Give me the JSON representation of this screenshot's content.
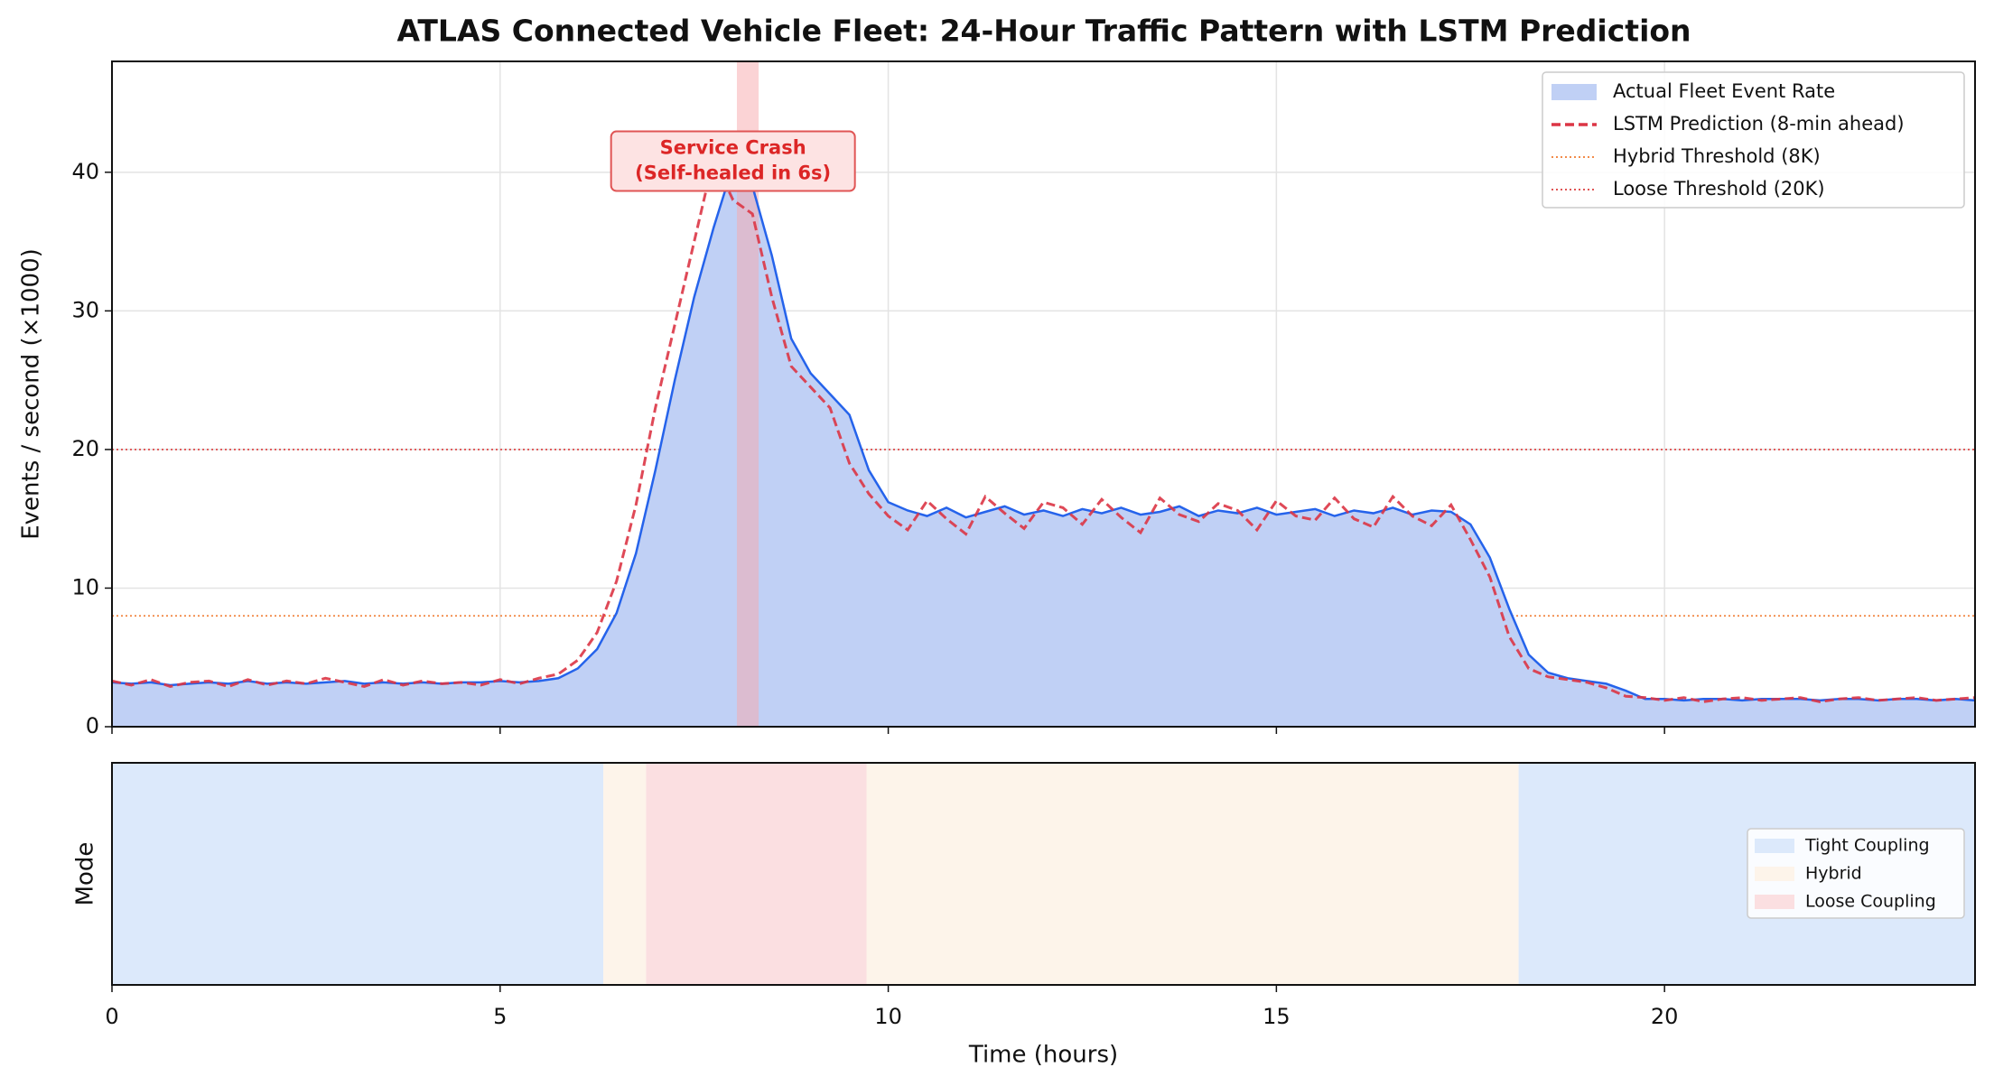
{
  "chart_data": [
    {
      "type": "line",
      "title": "ATLAS Connected Vehicle Fleet: 24-Hour Traffic Pattern with LSTM Prediction",
      "ylabel": "Events / second (×1000)",
      "x": [
        0,
        0.25,
        0.5,
        0.75,
        1,
        1.25,
        1.5,
        1.75,
        2,
        2.25,
        2.5,
        2.75,
        3,
        3.25,
        3.5,
        3.75,
        4,
        4.25,
        4.5,
        4.75,
        5,
        5.25,
        5.5,
        5.75,
        6,
        6.25,
        6.5,
        6.75,
        7,
        7.25,
        7.5,
        7.75,
        8,
        8.25,
        8.5,
        8.75,
        9,
        9.25,
        9.5,
        9.75,
        10,
        10.25,
        10.5,
        10.75,
        11,
        11.25,
        11.5,
        11.75,
        12,
        12.25,
        12.5,
        12.75,
        13,
        13.25,
        13.5,
        13.75,
        14,
        14.25,
        14.5,
        14.75,
        15,
        15.25,
        15.5,
        15.75,
        16,
        16.25,
        16.5,
        16.75,
        17,
        17.25,
        17.5,
        17.75,
        18,
        18.25,
        18.5,
        18.75,
        19,
        19.25,
        19.5,
        19.75,
        20,
        20.25,
        20.5,
        20.75,
        21,
        21.25,
        21.5,
        21.75,
        22,
        22.25,
        22.5,
        22.75,
        23,
        23.25,
        23.5,
        23.75,
        24
      ],
      "series": [
        {
          "name": "Actual Fleet Event Rate",
          "color": "#2563eb",
          "fill": "#c0d0f5",
          "values": [
            3.2,
            3.1,
            3.2,
            3.0,
            3.1,
            3.2,
            3.1,
            3.3,
            3.1,
            3.2,
            3.1,
            3.2,
            3.3,
            3.1,
            3.2,
            3.1,
            3.2,
            3.1,
            3.2,
            3.2,
            3.3,
            3.2,
            3.3,
            3.5,
            4.2,
            5.6,
            8.2,
            12.5,
            18.5,
            25,
            31,
            36,
            40.5,
            39,
            34,
            28,
            25.5,
            24,
            22.5,
            18.5,
            16.2,
            15.6,
            15.2,
            15.8,
            15.1,
            15.5,
            15.9,
            15.3,
            15.6,
            15.2,
            15.7,
            15.4,
            15.8,
            15.3,
            15.5,
            15.9,
            15.2,
            15.6,
            15.4,
            15.8,
            15.3,
            15.5,
            15.7,
            15.2,
            15.6,
            15.4,
            15.8,
            15.3,
            15.6,
            15.5,
            14.6,
            12.2,
            8.5,
            5.2,
            3.9,
            3.5,
            3.3,
            3.1,
            2.6,
            2.0,
            2.0,
            1.9,
            2.0,
            2.0,
            1.9,
            2.0,
            2.0,
            2.0,
            1.9,
            2.0,
            2.0,
            1.9,
            2.0,
            2.0,
            1.9,
            2.0,
            1.9
          ]
        },
        {
          "name": "LSTM Prediction (8-min ahead)",
          "color": "#dc3545",
          "dashed": true,
          "values": [
            3.3,
            3.0,
            3.4,
            2.9,
            3.2,
            3.3,
            2.9,
            3.4,
            3.0,
            3.3,
            3.1,
            3.5,
            3.2,
            2.9,
            3.4,
            3.0,
            3.3,
            3.1,
            3.2,
            3.0,
            3.4,
            3.1,
            3.5,
            3.8,
            4.8,
            6.8,
            10.5,
            16,
            23,
            29,
            35,
            41,
            38,
            37,
            31,
            26,
            24.5,
            23,
            19,
            16.8,
            15.2,
            14.2,
            16.3,
            15.0,
            13.9,
            16.6,
            15.4,
            14.3,
            16.2,
            15.8,
            14.6,
            16.4,
            15.1,
            14.0,
            16.5,
            15.3,
            14.8,
            16.1,
            15.6,
            14.2,
            16.3,
            15.2,
            14.9,
            16.5,
            15.0,
            14.4,
            16.6,
            15.2,
            14.5,
            16.0,
            13.5,
            10.8,
            6.5,
            4.2,
            3.6,
            3.4,
            3.2,
            2.8,
            2.2,
            2.1,
            1.9,
            2.1,
            1.8,
            2.0,
            2.1,
            1.9,
            2.0,
            2.1,
            1.8,
            2.0,
            2.1,
            1.9,
            2.0,
            2.1,
            1.9,
            2.0,
            2.1
          ]
        }
      ],
      "thresholds": [
        {
          "name": "Hybrid Threshold (8K)",
          "value": 8,
          "color": "#f28c4a"
        },
        {
          "name": "Loose Threshold (20K)",
          "value": 20,
          "color": "#e05555"
        }
      ],
      "span": [
        8.05,
        8.33
      ],
      "span_color": "#f7a8ab",
      "annotation": {
        "text": [
          "Service Crash",
          "(Self-healed in 6s)"
        ],
        "x": 8,
        "y": 40.8,
        "color": "#dc2626"
      },
      "xlim": [
        0,
        24
      ],
      "xticks": [
        0,
        5,
        10,
        15,
        20
      ],
      "ylim": [
        0,
        48
      ],
      "yticks": [
        0,
        10,
        20,
        30,
        40
      ],
      "grid": true,
      "legend": "upper right"
    },
    {
      "type": "band",
      "ylabel": "Mode",
      "xlabel": "Time (hours)",
      "series": [
        {
          "name": "Tight Coupling",
          "color": "#dce9fb",
          "intervals": [
            [
              0,
              6.33
            ],
            [
              18.12,
              24
            ]
          ]
        },
        {
          "name": "Hybrid",
          "color": "#fdf4ea",
          "intervals": [
            [
              6.33,
              6.88
            ],
            [
              9.72,
              18.12
            ]
          ]
        },
        {
          "name": "Loose Coupling",
          "color": "#fbdfe1",
          "intervals": [
            [
              6.88,
              9.72
            ]
          ]
        }
      ],
      "xlim": [
        0,
        24
      ],
      "xticks": [
        0,
        5,
        10,
        15,
        20
      ],
      "legend": "center right"
    }
  ]
}
